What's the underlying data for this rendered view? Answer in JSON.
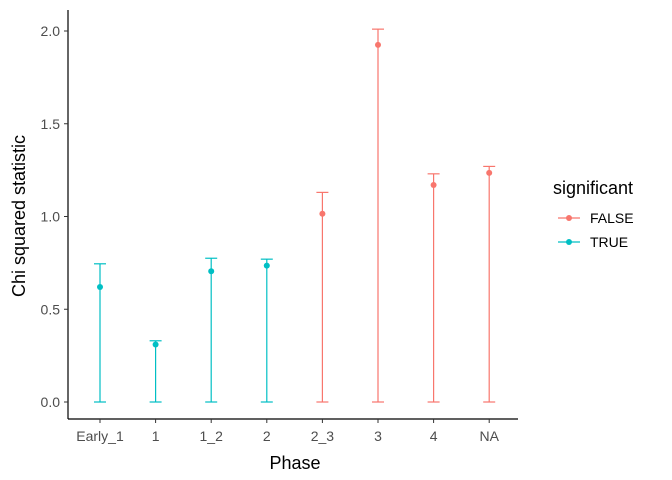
{
  "chart_data": {
    "type": "errorbar",
    "xlabel": "Phase",
    "ylabel": "Chi squared statistic",
    "categories": [
      "Early_1",
      "1",
      "1_2",
      "2",
      "2_3",
      "3",
      "4",
      "NA"
    ],
    "points": [
      {
        "x": "Early_1",
        "y": 0.62,
        "ymin": 0.0,
        "ymax": 0.745,
        "significant": "TRUE"
      },
      {
        "x": "1",
        "y": 0.31,
        "ymin": 0.0,
        "ymax": 0.33,
        "significant": "TRUE"
      },
      {
        "x": "1_2",
        "y": 0.705,
        "ymin": 0.0,
        "ymax": 0.775,
        "significant": "TRUE"
      },
      {
        "x": "2",
        "y": 0.735,
        "ymin": 0.0,
        "ymax": 0.77,
        "significant": "TRUE"
      },
      {
        "x": "2_3",
        "y": 1.015,
        "ymin": 0.0,
        "ymax": 1.13,
        "significant": "FALSE"
      },
      {
        "x": "3",
        "y": 1.925,
        "ymin": 0.0,
        "ymax": 2.01,
        "significant": "FALSE"
      },
      {
        "x": "4",
        "y": 1.17,
        "ymin": 0.0,
        "ymax": 1.23,
        "significant": "FALSE"
      },
      {
        "x": "NA",
        "y": 1.235,
        "ymin": 0.0,
        "ymax": 1.27,
        "significant": "FALSE"
      }
    ],
    "ylim": [
      -0.08,
      2.1
    ],
    "yticks": [
      0.0,
      0.5,
      1.0,
      1.5,
      2.0
    ],
    "ytick_labels": [
      "0.0",
      "0.5",
      "1.0",
      "1.5",
      "2.0"
    ],
    "grid": false,
    "legend": {
      "title": "significant",
      "placement": "right",
      "entries": [
        {
          "label": "FALSE",
          "color": "#F8766D"
        },
        {
          "label": "TRUE",
          "color": "#00BFC4"
        }
      ]
    }
  }
}
